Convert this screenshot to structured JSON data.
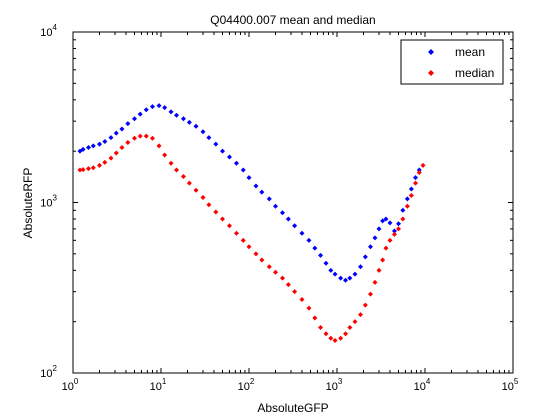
{
  "chart_data": {
    "type": "scatter",
    "title": "Q04400.007 mean and median",
    "xlabel": "AbsoluteGFP",
    "ylabel": "AbsoluteRFP",
    "xscale": "log",
    "yscale": "log",
    "xlim": [
      1,
      100000
    ],
    "ylim": [
      100,
      10000
    ],
    "xticks": [
      {
        "base": "10",
        "exp": "0"
      },
      {
        "base": "10",
        "exp": "1"
      },
      {
        "base": "10",
        "exp": "2"
      },
      {
        "base": "10",
        "exp": "3"
      },
      {
        "base": "10",
        "exp": "4"
      },
      {
        "base": "10",
        "exp": "5"
      }
    ],
    "yticks": [
      {
        "base": "10",
        "exp": "2"
      },
      {
        "base": "10",
        "exp": "3"
      },
      {
        "base": "10",
        "exp": "4"
      }
    ],
    "grid": false,
    "legend_position": "top-right",
    "series": [
      {
        "name": "mean",
        "color": "#0000ff",
        "marker": "dot",
        "x": [
          1.2,
          1.3,
          1.5,
          1.7,
          2.0,
          2.3,
          2.7,
          3.1,
          3.6,
          4.2,
          5.0,
          5.8,
          6.8,
          8.0,
          9.5,
          11,
          13,
          15,
          18,
          21,
          25,
          30,
          35,
          42,
          50,
          60,
          72,
          86,
          100,
          120,
          140,
          170,
          200,
          240,
          280,
          330,
          400,
          480,
          560,
          650,
          750,
          850,
          950,
          1100,
          1250,
          1400,
          1600,
          1850,
          2100,
          2400,
          2700,
          3000,
          3300,
          3600,
          4000,
          4500,
          5000,
          5600,
          6300,
          7000,
          7800,
          8600
        ],
        "y": [
          2000,
          2050,
          2100,
          2150,
          2200,
          2280,
          2400,
          2550,
          2700,
          2900,
          3100,
          3300,
          3500,
          3650,
          3700,
          3600,
          3400,
          3250,
          3100,
          2950,
          2800,
          2600,
          2400,
          2200,
          2000,
          1850,
          1700,
          1550,
          1400,
          1250,
          1150,
          1050,
          950,
          870,
          800,
          730,
          660,
          600,
          540,
          490,
          440,
          400,
          380,
          360,
          350,
          360,
          380,
          420,
          480,
          550,
          620,
          700,
          780,
          800,
          760,
          680,
          750,
          900,
          1050,
          1200,
          1400,
          1550
        ]
      },
      {
        "name": "median",
        "color": "#ff0000",
        "marker": "dot",
        "x": [
          1.2,
          1.3,
          1.5,
          1.7,
          2.0,
          2.3,
          2.7,
          3.1,
          3.6,
          4.2,
          5.0,
          5.8,
          6.8,
          8.0,
          9.5,
          11,
          13,
          15,
          18,
          21,
          25,
          30,
          35,
          42,
          50,
          60,
          72,
          86,
          100,
          120,
          140,
          170,
          200,
          240,
          280,
          330,
          400,
          480,
          560,
          650,
          750,
          850,
          950,
          1100,
          1250,
          1400,
          1600,
          1850,
          2100,
          2400,
          2700,
          3000,
          3300,
          3600,
          4000,
          4500,
          5000,
          5600,
          6300,
          7000,
          7800,
          8600,
          9500
        ],
        "y": [
          1550,
          1560,
          1580,
          1600,
          1650,
          1720,
          1820,
          1950,
          2100,
          2250,
          2380,
          2450,
          2450,
          2380,
          2150,
          1900,
          1700,
          1550,
          1420,
          1300,
          1180,
          1070,
          970,
          880,
          800,
          730,
          660,
          600,
          550,
          500,
          460,
          420,
          390,
          360,
          330,
          300,
          270,
          240,
          210,
          185,
          170,
          160,
          155,
          160,
          170,
          185,
          200,
          220,
          250,
          290,
          340,
          400,
          460,
          540,
          600,
          650,
          700,
          800,
          950,
          1100,
          1300,
          1500,
          1650
        ]
      }
    ]
  }
}
